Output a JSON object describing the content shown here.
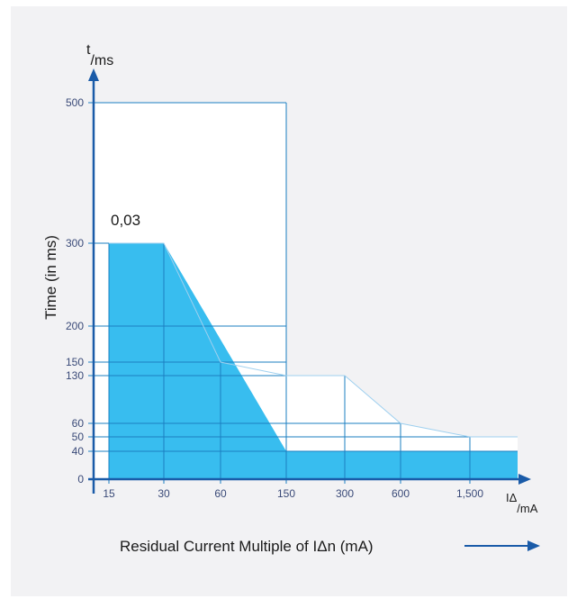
{
  "chart_data": {
    "type": "area",
    "x_axis": {
      "categories": [
        "15",
        "30",
        "60",
        "150",
        "300",
        "600",
        "1,500"
      ],
      "unit_main": "I",
      "unit_delta": "Δ",
      "unit_sub": "/mA"
    },
    "y_axis": {
      "ticks": [
        0,
        40,
        50,
        60,
        130,
        150,
        200,
        300,
        500
      ],
      "unit_main": "t",
      "unit_sub": "/ms"
    },
    "ylabel": "Time (in ms)",
    "xlabel": "Residual Current Multiple of IΔn (mA)",
    "series": [
      {
        "role": "filled-area",
        "points": [
          [
            "15",
            0
          ],
          [
            "15",
            300
          ],
          [
            "30",
            300
          ],
          [
            "150",
            40
          ],
          [
            "end",
            40
          ],
          [
            "end",
            0
          ]
        ]
      },
      {
        "role": "outline",
        "points": [
          [
            "15",
            300
          ],
          [
            "30",
            300
          ],
          [
            "60",
            150
          ],
          [
            "150",
            130
          ],
          [
            "300",
            130
          ],
          [
            "600",
            60
          ],
          [
            "1,500",
            50
          ],
          [
            "end",
            50
          ]
        ]
      }
    ],
    "annotations": [
      {
        "text": "0,03",
        "x": "15",
        "y": 300
      }
    ],
    "colors": {
      "fill": "#38bdef",
      "grid": "#1b7fc2",
      "axis": "#1a5ba8",
      "outline": "#9fd0ef",
      "background": "#f2f2f4"
    }
  }
}
